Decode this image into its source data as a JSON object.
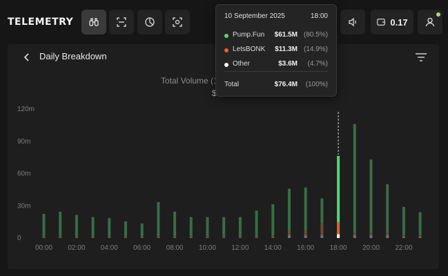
{
  "app": {
    "logo": "TELEMETRY"
  },
  "topbar": {
    "nav": [
      {
        "icon": "binoculars-icon",
        "active": true
      },
      {
        "icon": "scan-icon",
        "active": false
      },
      {
        "icon": "pie-chart-icon",
        "active": false
      },
      {
        "icon": "target-scan-icon",
        "active": false
      }
    ],
    "volume_icon": "speaker-icon",
    "wallet": {
      "icon": "wallet-icon",
      "value": "0.17"
    },
    "user_icon": "user-icon",
    "status_color": "#9be36a"
  },
  "panel": {
    "title": "Daily Breakdown",
    "total_label": "Total Volume (1",
    "total_value_partial": "$"
  },
  "tooltip": {
    "date": "10 September 2025",
    "time": "18:00",
    "rows": [
      {
        "name": "Pump.Fun",
        "value": "$61.5M",
        "pct": "(80.5%)",
        "color": "#5fd07a"
      },
      {
        "name": "LetsBONK",
        "value": "$11.3M",
        "pct": "(14.9%)",
        "color": "#e0642a"
      },
      {
        "name": "Other",
        "value": "$3.6M",
        "pct": "(4.7%)",
        "color": "#ffffff"
      }
    ],
    "total": {
      "name": "Total",
      "value": "$76.4M",
      "pct": "(100%)"
    }
  },
  "chart_data": {
    "type": "bar",
    "stacked": true,
    "title": "Total Volume",
    "xlabel": "",
    "ylabel": "",
    "ylim": [
      0,
      120
    ],
    "yticks": [
      "0",
      "30m",
      "60m",
      "90m",
      "120m"
    ],
    "ytick_values": [
      0,
      30,
      60,
      90,
      120
    ],
    "xticks": [
      "00:00",
      "02:00",
      "04:00",
      "06:00",
      "08:00",
      "10:00",
      "12:00",
      "14:00",
      "16:00",
      "18:00",
      "20:00",
      "22:00"
    ],
    "categories": [
      "00:00",
      "01:00",
      "02:00",
      "03:00",
      "04:00",
      "05:00",
      "06:00",
      "07:00",
      "08:00",
      "09:00",
      "10:00",
      "11:00",
      "12:00",
      "13:00",
      "14:00",
      "15:00",
      "16:00",
      "17:00",
      "18:00",
      "19:00",
      "20:00",
      "21:00",
      "22:00",
      "23:00"
    ],
    "highlight_index": 18,
    "series": [
      {
        "name": "Pump.Fun",
        "color": "#5fd07a",
        "values": [
          21,
          23,
          20,
          18,
          17,
          14,
          12,
          32,
          23,
          18,
          18,
          18,
          18,
          24,
          29,
          40,
          40,
          23,
          61.5,
          101,
          68,
          45,
          26,
          21
        ]
      },
      {
        "name": "LetsBONK",
        "color": "#e0642a",
        "values": [
          1,
          1,
          1,
          1,
          1,
          1,
          1,
          1,
          1,
          1,
          1,
          1,
          1,
          1,
          2,
          3,
          4,
          11,
          11.3,
          2,
          2,
          2,
          2,
          2
        ]
      },
      {
        "name": "Other",
        "color": "#ffffff",
        "values": [
          0.5,
          0.5,
          0.5,
          0.5,
          0.5,
          0.5,
          0.5,
          0.5,
          0.5,
          0.5,
          0.5,
          0.5,
          0.5,
          0.5,
          0.5,
          3,
          3,
          3,
          3.6,
          3,
          3,
          3,
          1,
          1
        ]
      }
    ]
  }
}
